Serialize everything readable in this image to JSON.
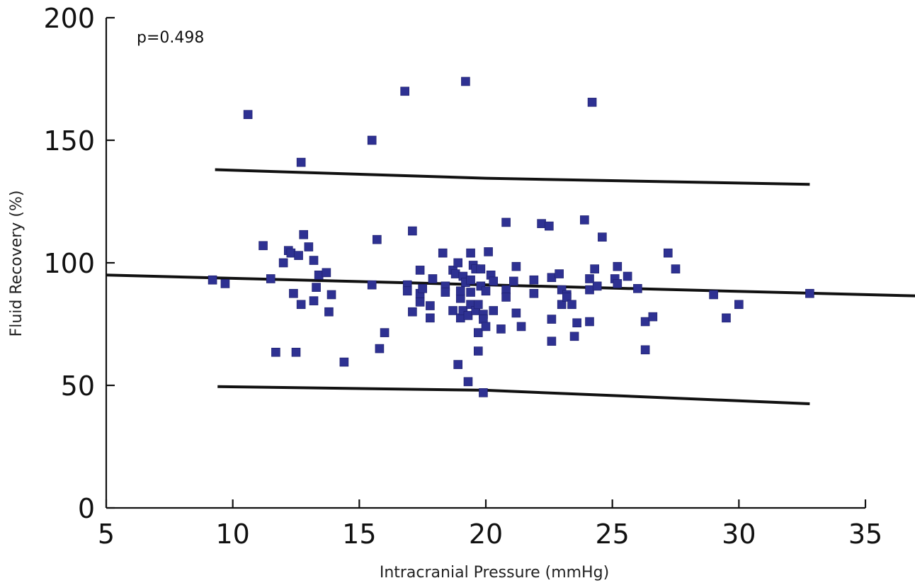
{
  "chart_data": {
    "type": "scatter",
    "title": "",
    "xlabel": "Intracranial Pressure (mmHg)",
    "ylabel": "Fluid Recovery (%)",
    "xlim": [
      5,
      35
    ],
    "ylim": [
      0,
      200
    ],
    "xticks": [
      5,
      10,
      15,
      20,
      25,
      30,
      35
    ],
    "yticks": [
      0,
      50,
      100,
      150,
      200
    ],
    "xtick_labels": [
      "5",
      "10",
      "15",
      "20",
      "25",
      "30",
      "35"
    ],
    "ytick_labels": [
      "0",
      "50",
      "100",
      "150",
      "200"
    ],
    "annotation": "p=0.498",
    "grid": false,
    "point_color": "#2e3192",
    "line_color": "#111111",
    "points": [
      [
        9.2,
        93
      ],
      [
        9.7,
        91.5
      ],
      [
        10.6,
        160.5
      ],
      [
        11.2,
        107
      ],
      [
        11.5,
        93.5
      ],
      [
        11.7,
        63.5
      ],
      [
        12.0,
        100
      ],
      [
        12.2,
        105
      ],
      [
        12.3,
        104
      ],
      [
        12.4,
        87.5
      ],
      [
        12.5,
        63.5
      ],
      [
        12.6,
        103
      ],
      [
        12.7,
        83
      ],
      [
        12.8,
        111.5
      ],
      [
        12.7,
        141
      ],
      [
        13.0,
        106.5
      ],
      [
        13.2,
        101
      ],
      [
        13.2,
        84.5
      ],
      [
        13.3,
        90
      ],
      [
        13.4,
        95
      ],
      [
        13.7,
        96
      ],
      [
        13.8,
        80
      ],
      [
        13.9,
        87
      ],
      [
        14.4,
        59.5
      ],
      [
        15.5,
        91
      ],
      [
        15.7,
        109.5
      ],
      [
        15.8,
        65
      ],
      [
        16.0,
        71.5
      ],
      [
        15.5,
        150
      ],
      [
        16.8,
        170
      ],
      [
        16.9,
        91
      ],
      [
        16.9,
        88.5
      ],
      [
        17.1,
        113
      ],
      [
        17.1,
        80
      ],
      [
        17.4,
        97
      ],
      [
        17.4,
        84
      ],
      [
        17.4,
        87.5
      ],
      [
        17.5,
        89.5
      ],
      [
        17.8,
        77.5
      ],
      [
        17.8,
        82.5
      ],
      [
        17.9,
        93.5
      ],
      [
        18.3,
        104
      ],
      [
        18.4,
        90.5
      ],
      [
        18.4,
        88
      ],
      [
        18.7,
        97
      ],
      [
        18.7,
        80.5
      ],
      [
        18.8,
        95.5
      ],
      [
        18.9,
        100
      ],
      [
        18.9,
        58.5
      ],
      [
        19.0,
        85.5
      ],
      [
        19.0,
        88.5
      ],
      [
        19.0,
        77.5
      ],
      [
        19.1,
        94.5
      ],
      [
        19.1,
        80.5
      ],
      [
        19.2,
        92
      ],
      [
        19.2,
        174
      ],
      [
        19.3,
        51.5
      ],
      [
        19.3,
        78.5
      ],
      [
        19.4,
        104
      ],
      [
        19.4,
        83
      ],
      [
        19.4,
        88
      ],
      [
        19.4,
        93
      ],
      [
        19.5,
        99
      ],
      [
        19.6,
        97.5
      ],
      [
        19.6,
        80.5
      ],
      [
        19.7,
        71.5
      ],
      [
        19.7,
        64
      ],
      [
        19.7,
        83
      ],
      [
        19.8,
        90.5
      ],
      [
        19.8,
        97.5
      ],
      [
        19.9,
        79
      ],
      [
        19.9,
        77
      ],
      [
        19.9,
        47
      ],
      [
        20.0,
        88.5
      ],
      [
        20.0,
        74
      ],
      [
        20.1,
        104.5
      ],
      [
        20.2,
        95
      ],
      [
        20.3,
        92.5
      ],
      [
        20.3,
        80.5
      ],
      [
        20.6,
        73
      ],
      [
        20.8,
        89
      ],
      [
        20.8,
        116.5
      ],
      [
        20.8,
        86
      ],
      [
        21.1,
        92.5
      ],
      [
        21.2,
        98.5
      ],
      [
        21.2,
        79.5
      ],
      [
        21.4,
        74
      ],
      [
        21.9,
        93
      ],
      [
        21.9,
        87.5
      ],
      [
        22.2,
        116
      ],
      [
        22.5,
        115
      ],
      [
        22.6,
        94
      ],
      [
        22.6,
        77
      ],
      [
        22.6,
        68
      ],
      [
        22.9,
        95.5
      ],
      [
        23.0,
        89
      ],
      [
        23.0,
        83
      ],
      [
        23.2,
        87
      ],
      [
        23.2,
        86
      ],
      [
        23.4,
        83
      ],
      [
        23.5,
        70
      ],
      [
        23.6,
        75.5
      ],
      [
        23.9,
        117.5
      ],
      [
        24.1,
        93.5
      ],
      [
        24.1,
        76
      ],
      [
        24.1,
        89
      ],
      [
        24.2,
        165.5
      ],
      [
        24.3,
        97.5
      ],
      [
        24.4,
        90.5
      ],
      [
        24.6,
        110.5
      ],
      [
        25.1,
        93.5
      ],
      [
        25.2,
        98.5
      ],
      [
        25.2,
        91.5
      ],
      [
        25.6,
        94.5
      ],
      [
        26.0,
        89.5
      ],
      [
        26.3,
        76
      ],
      [
        26.3,
        64.5
      ],
      [
        26.6,
        78
      ],
      [
        27.2,
        104
      ],
      [
        27.5,
        97.5
      ],
      [
        29.0,
        87
      ],
      [
        29.5,
        77.5
      ],
      [
        30.0,
        83
      ],
      [
        32.8,
        87.5
      ]
    ],
    "fit_line": {
      "x": [
        5,
        37
      ],
      "y": [
        95,
        86.5
      ]
    },
    "upper_band": {
      "x": [
        9.3,
        20,
        32.8
      ],
      "y": [
        138,
        134.5,
        132
      ]
    },
    "lower_band": {
      "x": [
        9.4,
        20,
        32.8
      ],
      "y": [
        49.5,
        48,
        42.5
      ]
    }
  }
}
